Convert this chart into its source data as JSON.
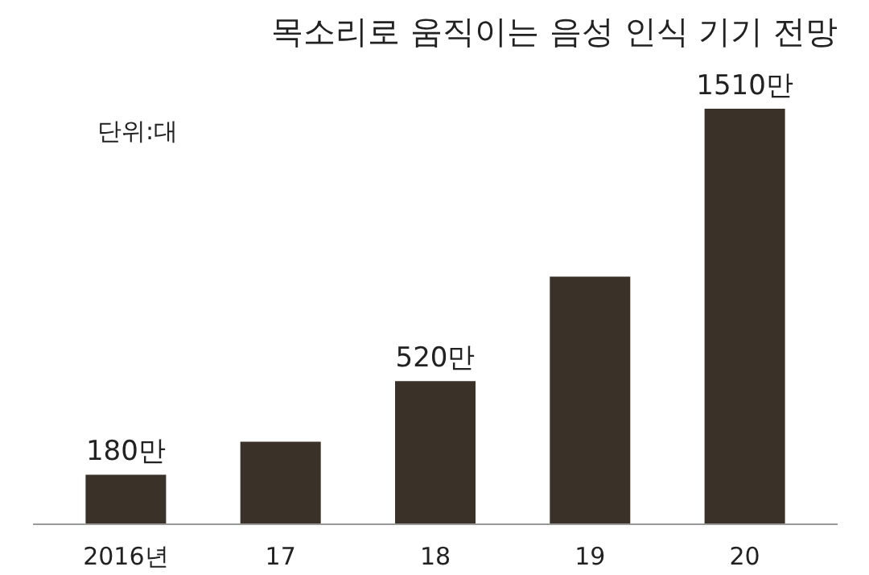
{
  "chart_data": {
    "type": "bar",
    "title": "목소리로 움직이는 음성 인식 기기 전망",
    "annotations": [
      "단위:대"
    ],
    "categories": [
      "2016년",
      "17",
      "18",
      "19",
      "20"
    ],
    "values": [
      180,
      300,
      520,
      900,
      1510
    ],
    "value_labels": [
      "180만",
      null,
      "520만",
      null,
      "1510만"
    ],
    "color": "#3a3128",
    "grid": false
  }
}
